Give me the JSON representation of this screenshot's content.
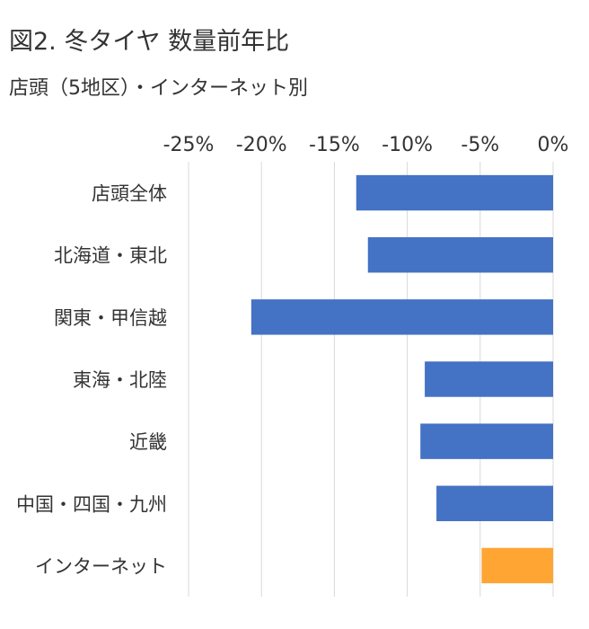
{
  "title": "図2. 冬タイヤ 数量前年比",
  "subtitle": "店頭（5地区）・インターネット別",
  "chart_data": {
    "type": "bar",
    "orientation": "horizontal",
    "categories": [
      "店頭全体",
      "北海道・東北",
      "関東・甲信越",
      "東海・北陸",
      "近畿",
      "中国・四国・九州",
      "インターネット"
    ],
    "values": [
      -13.5,
      -12.7,
      -20.7,
      -8.8,
      -9.1,
      -8.0,
      -4.9
    ],
    "bar_colors": [
      "#4472c4",
      "#4472c4",
      "#4472c4",
      "#4472c4",
      "#4472c4",
      "#4472c4",
      "#ffa533"
    ],
    "xlim": [
      -25,
      0
    ],
    "x_ticks": [
      -25,
      -20,
      -15,
      -10,
      -5,
      0
    ],
    "x_tick_labels": [
      "-25%",
      "-20%",
      "-15%",
      "-10%",
      "-5%",
      "0%"
    ],
    "x_axis_position": "top",
    "grid": true,
    "xlabel": "",
    "ylabel": ""
  }
}
